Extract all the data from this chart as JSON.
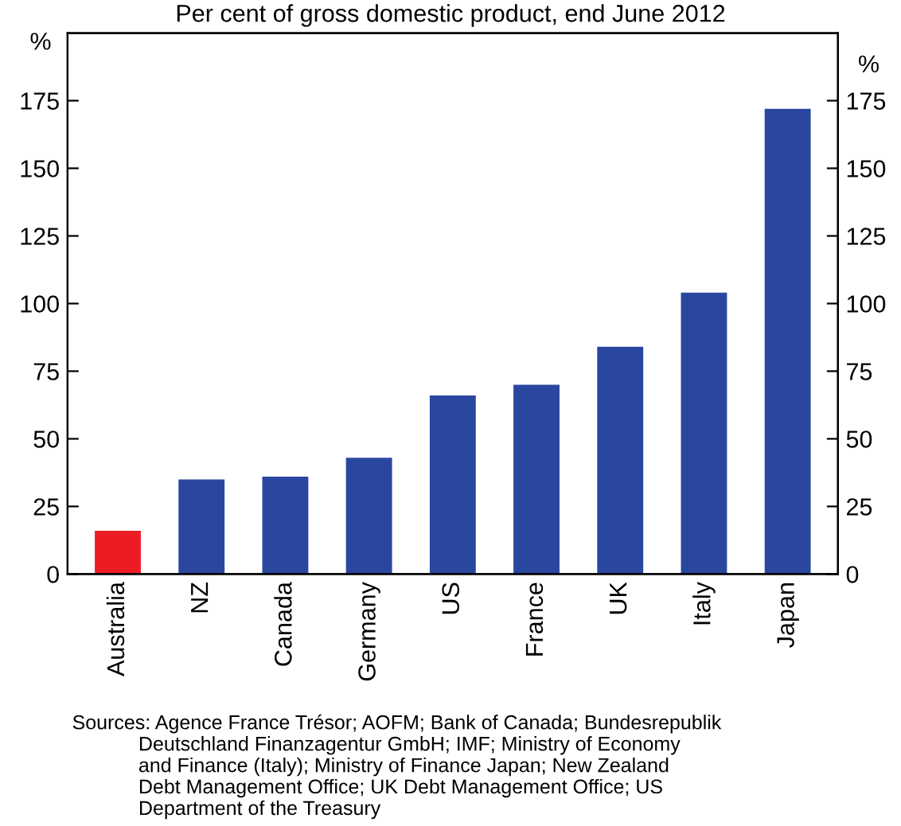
{
  "chart_data": {
    "type": "bar",
    "subtitle": "Per cent of gross domestic product, end June 2012",
    "categories": [
      "Australia",
      "NZ",
      "Canada",
      "Germany",
      "US",
      "France",
      "UK",
      "Italy",
      "Japan"
    ],
    "values": [
      16,
      35,
      36,
      43,
      66,
      70,
      84,
      104,
      172
    ],
    "colors": [
      "#ed1c24",
      "#2a47a0",
      "#2a47a0",
      "#2a47a0",
      "#2a47a0",
      "#2a47a0",
      "#2a47a0",
      "#2a47a0",
      "#2a47a0"
    ],
    "ylabel": "%",
    "y2label": "%",
    "ylim": [
      0,
      200
    ],
    "yticks": [
      0,
      25,
      50,
      75,
      100,
      125,
      150,
      175
    ],
    "y2lim": [
      0,
      200
    ],
    "y2ticks": [
      0,
      25,
      50,
      75,
      100,
      125,
      150,
      175
    ],
    "grid": false,
    "legend": false,
    "annotations": [
      "Sources: Agence France Trésor; AOFM; Bank of Canada; Bundesrepublik\n            Deutschland Finanzagentur GmbH; IMF; Ministry of Economy\n            and Finance (Italy); Ministry of Finance Japan; New Zealand\n            Debt Management Office; UK Debt Management Office; US\n            Department of the Treasury"
    ]
  }
}
